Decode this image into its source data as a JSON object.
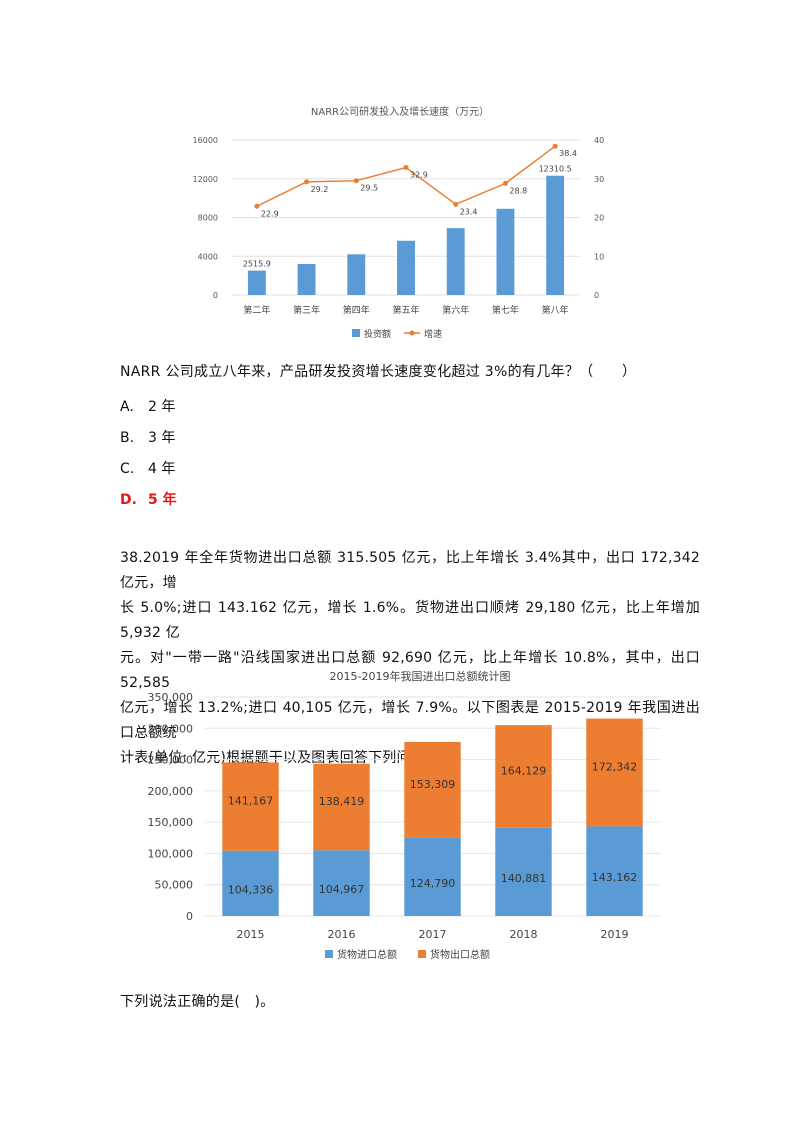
{
  "chart1": {
    "title": "NARR公司研发投入及增长速度（万元）",
    "chart_data": {
      "type": "bar",
      "categories": [
        "第二年",
        "第三年",
        "第四年",
        "第五年",
        "第六年",
        "第七年",
        "第八年"
      ],
      "series": [
        {
          "name": "投资额",
          "type": "bar",
          "axis": "left",
          "values": [
            2515.9,
            3200,
            4200,
            5600,
            6900,
            8900,
            12310.5
          ],
          "labels": [
            "2515.9",
            "",
            "",
            "",
            "",
            "",
            "12310.5"
          ]
        },
        {
          "name": "增速",
          "type": "line",
          "axis": "right",
          "values": [
            22.9,
            29.2,
            29.5,
            32.9,
            23.4,
            28.8,
            38.4
          ],
          "labels": [
            "22.9",
            "29.2",
            "29.5",
            "32.9",
            "23.4",
            "28.8",
            "38.4"
          ]
        }
      ],
      "y_left": {
        "ticks": [
          "0",
          "4000",
          "8000",
          "12000",
          "16000"
        ],
        "range": [
          0,
          16000
        ]
      },
      "y_right": {
        "ticks": [
          "0",
          "10",
          "20",
          "30",
          "40"
        ],
        "range": [
          0,
          40
        ]
      },
      "legend_position": "bottom",
      "colors": {
        "bar": "#5b9bd5",
        "line": "#ed7d31"
      }
    }
  },
  "question1": {
    "text": "NARR 公司成立八年来，产品研发投资增长速度变化超过 3%的有几年？（　　）",
    "options": [
      {
        "letter": "A.",
        "text": "2 年",
        "correct": false
      },
      {
        "letter": "B.",
        "text": "3 年",
        "correct": false
      },
      {
        "letter": "C.",
        "text": "4 年",
        "correct": false
      },
      {
        "letter": "D.",
        "text": "5 年",
        "correct": true
      }
    ]
  },
  "question38": {
    "lines": [
      "38.2019 年全年货物进出口总额 315.505 亿元，比上年增长 3.4%其中，出口 172,342 亿元，增",
      "长 5.0%;进口 143.162 亿元，增长 1.6%。货物进出口顺烤 29,180 亿元，比上年增加 5,932 亿",
      "元。对\"一带一路\"沿线国家进出口总额 92,690 亿元，比上年增长 10.8%，其中，出口 52,585",
      "亿元，增长 13.2%;进口 40,105 亿元，增长 7.9%。以下图表是 2015-2019 年我国进出口总额统",
      "计表(单位: 亿元)根据题干以及图表回答下列问题:"
    ]
  },
  "chart2": {
    "title": "2015-2019年我国进出口总额统计图",
    "chart_data": {
      "type": "bar",
      "stacked": true,
      "categories": [
        "2015",
        "2016",
        "2017",
        "2018",
        "2019"
      ],
      "series": [
        {
          "name": "货物进口总额",
          "values": [
            104336,
            104967,
            124790,
            140881,
            143162
          ],
          "labels": [
            "104,336",
            "104,967",
            "124,790",
            "140,881",
            "143,162"
          ]
        },
        {
          "name": "货物出口总额",
          "values": [
            141167,
            138419,
            153309,
            164129,
            172342
          ],
          "labels": [
            "141,167",
            "138,419",
            "153,309",
            "164,129",
            "172,342"
          ]
        }
      ],
      "y_ticks": [
        "0",
        "50,000",
        "100,000",
        "150,000",
        "200,000",
        "250,000",
        "300,000",
        "350,000"
      ],
      "ylim": [
        0,
        350000
      ],
      "legend_position": "bottom",
      "colors": {
        "import": "#5b9bd5",
        "export": "#ed7d31"
      }
    }
  },
  "question_next": {
    "text": "下列说法正确的是(　)。"
  }
}
